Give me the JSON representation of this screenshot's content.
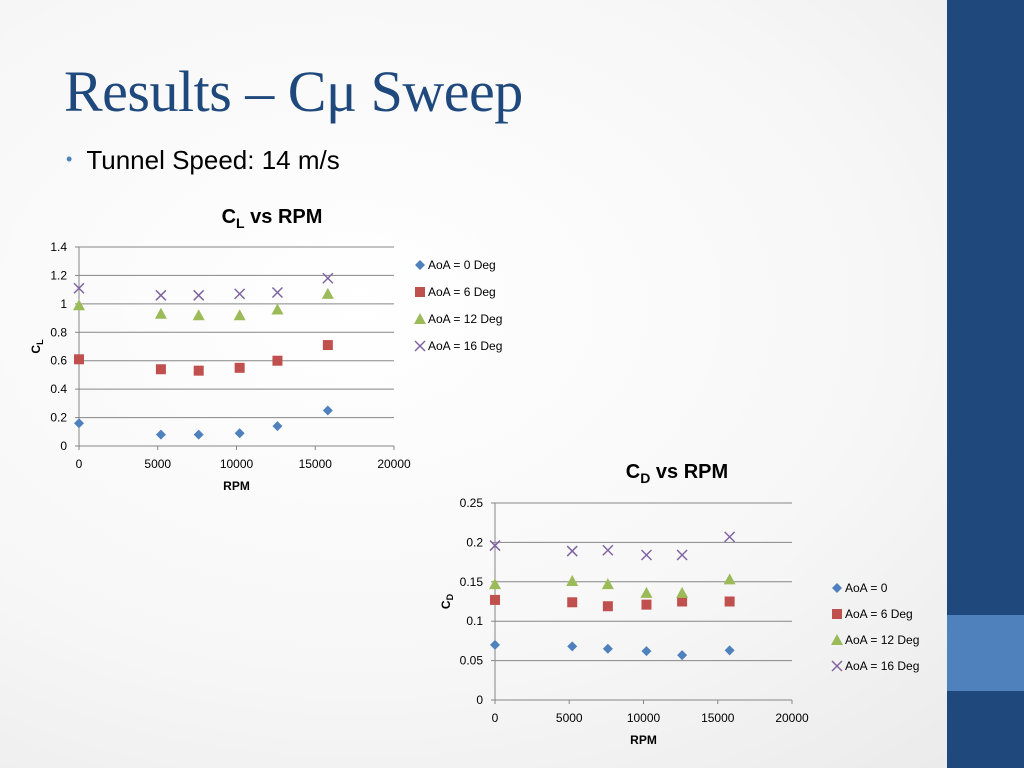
{
  "slide": {
    "title": "Results – Cμ Sweep",
    "bullet": "Tunnel Speed: 14 m/s"
  },
  "colors": {
    "sidebar": "#1f497d",
    "sidebar_accent": "#4f81bd",
    "title": "#1f497d"
  },
  "chart_data": [
    {
      "type": "scatter",
      "title": {
        "main": "C",
        "sub": "L",
        "rest": " vs RPM"
      },
      "xlabel": "RPM",
      "ylabel": {
        "main": "C",
        "sub": "L"
      },
      "xlim": [
        0,
        20000
      ],
      "ylim": [
        0,
        1.4
      ],
      "xticks": [
        "0",
        "5000",
        "10000",
        "15000",
        "20000"
      ],
      "yticks": [
        "0",
        "0.2",
        "0.4",
        "0.6",
        "0.8",
        "1",
        "1.2",
        "1.4"
      ],
      "grid": "horizontal",
      "legend": "right",
      "series": [
        {
          "name": "AoA = 0 Deg",
          "marker": "diamond",
          "color": "#4f81bd",
          "x": [
            0,
            5200,
            7600,
            10200,
            12600,
            15800
          ],
          "y": [
            0.16,
            0.08,
            0.08,
            0.09,
            0.14,
            0.25
          ]
        },
        {
          "name": "AoA = 6 Deg",
          "marker": "square",
          "color": "#c0504d",
          "x": [
            0,
            5200,
            7600,
            10200,
            12600,
            15800
          ],
          "y": [
            0.61,
            0.54,
            0.53,
            0.55,
            0.6,
            0.71
          ]
        },
        {
          "name": "AoA = 12 Deg",
          "marker": "triangle",
          "color": "#9bbb59",
          "x": [
            0,
            5200,
            7600,
            10200,
            12600,
            15800
          ],
          "y": [
            0.99,
            0.93,
            0.92,
            0.92,
            0.96,
            1.07
          ]
        },
        {
          "name": "AoA = 16 Deg",
          "marker": "x",
          "color": "#8064a2",
          "x": [
            0,
            5200,
            7600,
            10200,
            12600,
            15800
          ],
          "y": [
            1.11,
            1.06,
            1.06,
            1.07,
            1.08,
            1.18
          ]
        }
      ]
    },
    {
      "type": "scatter",
      "title": {
        "main": "C",
        "sub": "D",
        "rest": " vs RPM"
      },
      "xlabel": "RPM",
      "ylabel": {
        "main": "C",
        "sub": "D"
      },
      "xlim": [
        0,
        20000
      ],
      "ylim": [
        0,
        0.25
      ],
      "xticks": [
        "0",
        "5000",
        "10000",
        "15000",
        "20000"
      ],
      "yticks": [
        "0",
        "0.05",
        "0.1",
        "0.15",
        "0.2",
        "0.25"
      ],
      "grid": "horizontal",
      "legend": "right",
      "series": [
        {
          "name": "AoA = 0",
          "marker": "diamond",
          "color": "#4f81bd",
          "x": [
            0,
            5200,
            7600,
            10200,
            12600,
            15800
          ],
          "y": [
            0.07,
            0.068,
            0.065,
            0.062,
            0.057,
            0.063
          ]
        },
        {
          "name": "AoA = 6 Deg",
          "marker": "square",
          "color": "#c0504d",
          "x": [
            0,
            5200,
            7600,
            10200,
            12600,
            15800
          ],
          "y": [
            0.127,
            0.124,
            0.119,
            0.121,
            0.125,
            0.125
          ]
        },
        {
          "name": "AoA = 12 Deg",
          "marker": "triangle",
          "color": "#9bbb59",
          "x": [
            0,
            5200,
            7600,
            10200,
            12600,
            15800
          ],
          "y": [
            0.147,
            0.151,
            0.147,
            0.136,
            0.136,
            0.153
          ]
        },
        {
          "name": "AoA = 16 Deg",
          "marker": "x",
          "color": "#8064a2",
          "x": [
            0,
            5200,
            7600,
            10200,
            12600,
            15800
          ],
          "y": [
            0.196,
            0.189,
            0.19,
            0.184,
            0.184,
            0.207
          ]
        }
      ]
    }
  ]
}
